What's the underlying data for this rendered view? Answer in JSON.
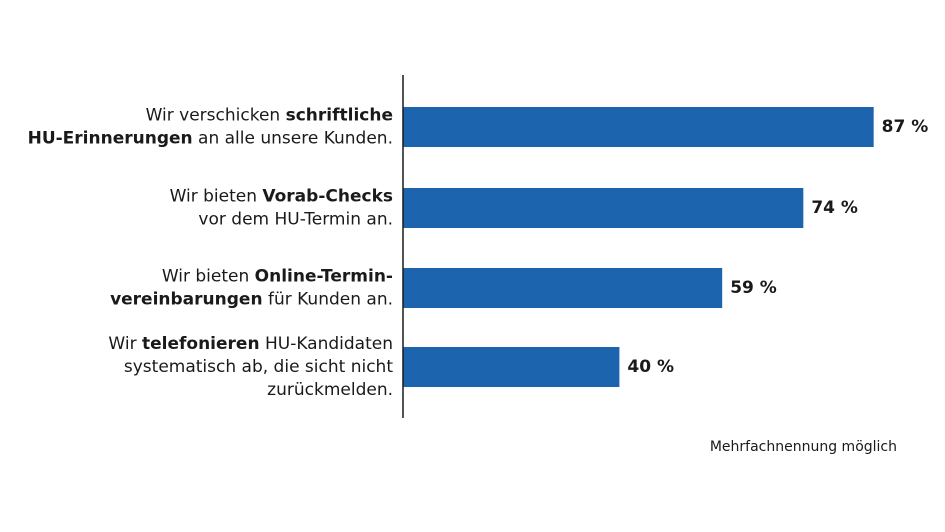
{
  "chart_data": {
    "type": "bar",
    "orientation": "horizontal",
    "categories": [
      [
        [
          {
            "text": "Wir verschicken ",
            "bold": false
          },
          {
            "text": "schriftliche",
            "bold": true
          }
        ],
        [
          {
            "text": "HU-Erinnerungen",
            "bold": true
          },
          {
            "text": " an alle unsere Kunden.",
            "bold": false
          }
        ]
      ],
      [
        [
          {
            "text": "Wir bieten ",
            "bold": false
          },
          {
            "text": "Vorab-Checks",
            "bold": true
          }
        ],
        [
          {
            "text": "vor dem HU-Termin an.",
            "bold": false
          }
        ]
      ],
      [
        [
          {
            "text": "Wir bieten ",
            "bold": false
          },
          {
            "text": "Online-Termin-",
            "bold": true
          }
        ],
        [
          {
            "text": "vereinbarungen",
            "bold": true
          },
          {
            "text": " für Kunden an.",
            "bold": false
          }
        ]
      ],
      [
        [
          {
            "text": "Wir ",
            "bold": false
          },
          {
            "text": "telefonieren",
            "bold": true
          },
          {
            "text": " HU-Kandidaten",
            "bold": false
          }
        ],
        [
          {
            "text": "systematisch ab, die sicht nicht",
            "bold": false
          }
        ],
        [
          {
            "text": "zurückmelden.",
            "bold": false
          }
        ]
      ]
    ],
    "values": [
      87,
      74,
      59,
      40
    ],
    "value_labels": [
      "87 %",
      "74 %",
      "59 %",
      "40 %"
    ],
    "color": "#1c64ae",
    "xlim": [
      0,
      100
    ],
    "note": "Mehrfachnennung möglich"
  }
}
